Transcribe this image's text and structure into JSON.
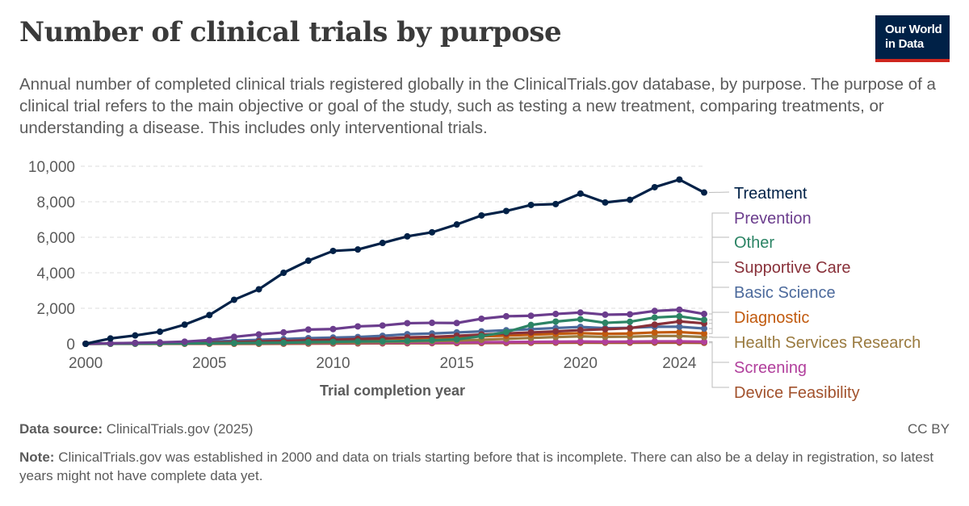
{
  "header": {
    "title": "Number of clinical trials by purpose",
    "subtitle": "Annual number of completed clinical trials registered globally in the ClinicalTrials.gov database, by purpose. The purpose of a clinical trial refers to the main objective or goal of the study, such as testing a new treatment, comparing treatments, or understanding a disease. This includes only interventional trials.",
    "logo_line1": "Our World",
    "logo_line2": "in Data"
  },
  "footer": {
    "source_label": "Data source:",
    "source_text": "ClinicalTrials.gov (2025)",
    "license": "CC BY",
    "note_label": "Note:",
    "note_text": "ClinicalTrials.gov was established in 2000 and data on trials starting before that is incomplete. There can also be a delay in registration, so latest years might not have complete data yet."
  },
  "chart_data": {
    "type": "line",
    "xlabel": "Trial completion year",
    "ylabel": "",
    "xlim": [
      1999.8,
      2025
    ],
    "ylim": [
      0,
      10000
    ],
    "yticks": [
      0,
      2000,
      4000,
      6000,
      8000,
      10000
    ],
    "ytick_labels": [
      "0",
      "2,000",
      "4,000",
      "6,000",
      "8,000",
      "10,000"
    ],
    "xticks": [
      2000,
      2005,
      2010,
      2015,
      2020,
      2024
    ],
    "xtick_labels": [
      "2000",
      "2005",
      "2010",
      "2015",
      "2020",
      "2024"
    ],
    "grid": "horizontal dashed",
    "legend": "right, labels at line ends",
    "x": [
      2000,
      2001,
      2002,
      2003,
      2004,
      2005,
      2006,
      2007,
      2008,
      2009,
      2010,
      2011,
      2012,
      2013,
      2014,
      2015,
      2016,
      2017,
      2018,
      2019,
      2020,
      2021,
      2022,
      2023,
      2024,
      2025
    ],
    "series": [
      {
        "name": "Treatment",
        "color": "#002147",
        "values": [
          0,
          300,
          470,
          680,
          1080,
          1620,
          2480,
          3070,
          4000,
          4680,
          5230,
          5310,
          5680,
          6050,
          6280,
          6720,
          7230,
          7480,
          7820,
          7870,
          8460,
          7960,
          8110,
          8820,
          9250,
          8520
        ]
      },
      {
        "name": "Prevention",
        "color": "#6b3d8d",
        "values": [
          0,
          30,
          50,
          80,
          120,
          210,
          390,
          530,
          640,
          800,
          830,
          980,
          1030,
          1160,
          1180,
          1170,
          1410,
          1550,
          1580,
          1680,
          1760,
          1640,
          1660,
          1850,
          1920,
          1680
        ]
      },
      {
        "name": "Other",
        "color": "#2c8465",
        "values": [
          0,
          5,
          10,
          15,
          20,
          30,
          40,
          50,
          60,
          90,
          110,
          130,
          140,
          160,
          200,
          250,
          430,
          660,
          1060,
          1250,
          1380,
          1180,
          1240,
          1480,
          1550,
          1350
        ]
      },
      {
        "name": "Supportive Care",
        "color": "#883039",
        "values": [
          0,
          10,
          20,
          30,
          50,
          70,
          100,
          130,
          160,
          200,
          230,
          270,
          300,
          360,
          390,
          450,
          520,
          580,
          640,
          700,
          770,
          820,
          880,
          1080,
          1260,
          1150
        ]
      },
      {
        "name": "Basic Science",
        "color": "#4c6a9c",
        "values": [
          0,
          20,
          40,
          60,
          80,
          120,
          180,
          220,
          270,
          320,
          350,
          380,
          450,
          540,
          580,
          640,
          700,
          760,
          820,
          890,
          950,
          880,
          900,
          960,
          960,
          860
        ]
      },
      {
        "name": "Diagnostic",
        "color": "#c15a0e",
        "values": [
          0,
          20,
          40,
          60,
          80,
          100,
          130,
          160,
          180,
          210,
          230,
          250,
          280,
          310,
          340,
          380,
          420,
          460,
          510,
          560,
          600,
          560,
          580,
          640,
          660,
          580
        ]
      },
      {
        "name": "Health Services Research",
        "color": "#9a7a3f",
        "values": [
          0,
          5,
          10,
          15,
          20,
          25,
          30,
          40,
          50,
          60,
          70,
          80,
          100,
          120,
          150,
          180,
          230,
          280,
          330,
          380,
          420,
          390,
          400,
          440,
          440,
          380
        ]
      },
      {
        "name": "Screening",
        "color": "#b13f9c",
        "values": [
          0,
          5,
          10,
          15,
          20,
          25,
          30,
          35,
          40,
          45,
          50,
          55,
          60,
          65,
          70,
          80,
          90,
          100,
          110,
          120,
          130,
          120,
          125,
          140,
          140,
          120
        ]
      },
      {
        "name": "Device Feasibility",
        "color": "#a2522d",
        "values": [
          0,
          0,
          0,
          0,
          0,
          0,
          0,
          0,
          5,
          10,
          15,
          20,
          25,
          30,
          35,
          40,
          45,
          50,
          55,
          60,
          65,
          60,
          60,
          65,
          65,
          55
        ]
      }
    ]
  }
}
